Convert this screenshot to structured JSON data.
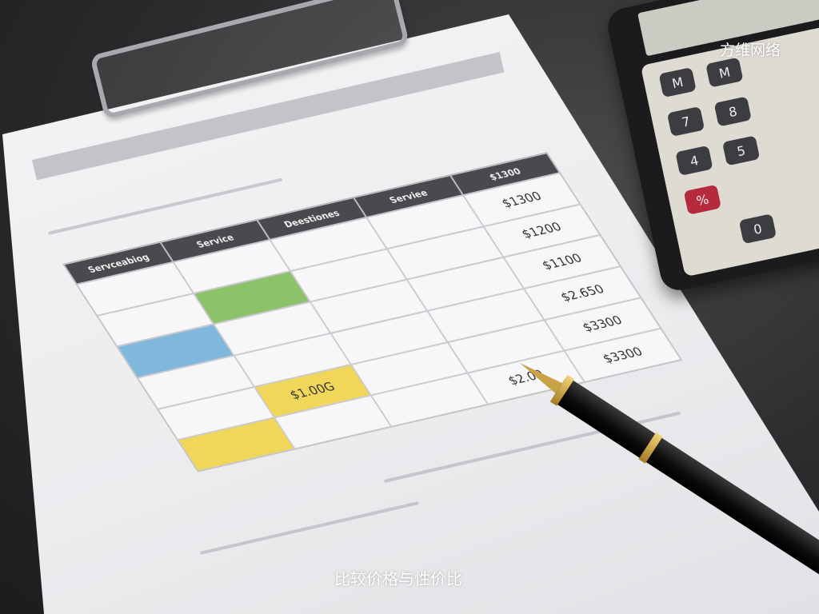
{
  "watermark": "方维网络",
  "caption": "比较价格与性价比",
  "table": {
    "headers": [
      "Servceabiog",
      "Service",
      "Deestiones",
      "Serviee",
      "$1300"
    ],
    "prices": [
      "$1300",
      "$1200",
      "$1100",
      "$2.650",
      "$3300",
      "$3300"
    ],
    "highlight_price": "$1.00G",
    "pen_price": "$2.00"
  },
  "calculator": {
    "keys": [
      "M",
      "M",
      "7",
      "8",
      "4",
      "5",
      "%",
      "0"
    ]
  },
  "colors": {
    "green": "#8cc26a",
    "blue": "#7fb8dc",
    "yellow": "#f0d75a",
    "header": "#4a4a4e"
  }
}
